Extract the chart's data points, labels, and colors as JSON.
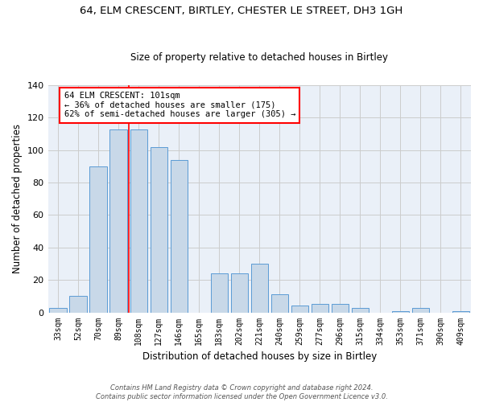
{
  "title1": "64, ELM CRESCENT, BIRTLEY, CHESTER LE STREET, DH3 1GH",
  "title2": "Size of property relative to detached houses in Birtley",
  "xlabel": "Distribution of detached houses by size in Birtley",
  "ylabel": "Number of detached properties",
  "categories": [
    "33sqm",
    "52sqm",
    "70sqm",
    "89sqm",
    "108sqm",
    "127sqm",
    "146sqm",
    "165sqm",
    "183sqm",
    "202sqm",
    "221sqm",
    "240sqm",
    "259sqm",
    "277sqm",
    "296sqm",
    "315sqm",
    "334sqm",
    "353sqm",
    "371sqm",
    "390sqm",
    "409sqm"
  ],
  "bar_values": [
    3,
    10,
    90,
    113,
    113,
    102,
    94,
    0,
    24,
    24,
    30,
    11,
    4,
    5,
    5,
    3,
    0,
    1,
    3,
    0,
    1
  ],
  "bar_color": "#c8d8e8",
  "bar_edge_color": "#5b9bd5",
  "vline_color": "red",
  "annotation_text": "64 ELM CRESCENT: 101sqm\n← 36% of detached houses are smaller (175)\n62% of semi-detached houses are larger (305) →",
  "annotation_box_color": "white",
  "annotation_box_edge": "red",
  "ylim": [
    0,
    140
  ],
  "yticks": [
    0,
    20,
    40,
    60,
    80,
    100,
    120,
    140
  ],
  "footnote": "Contains HM Land Registry data © Crown copyright and database right 2024.\nContains public sector information licensed under the Open Government Licence v3.0.",
  "grid_color": "#cccccc",
  "bg_color": "#eaf0f8"
}
